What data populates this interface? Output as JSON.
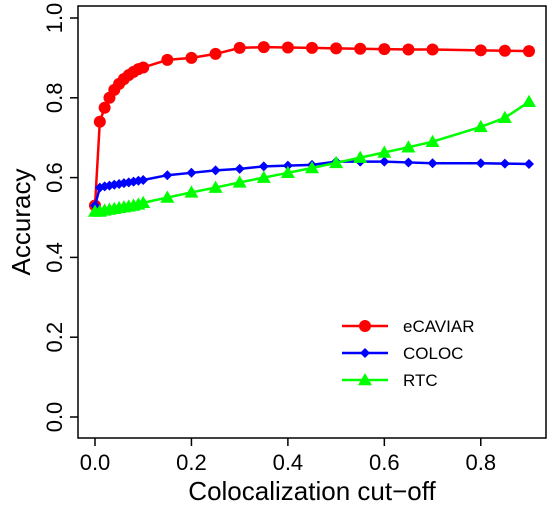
{
  "chart_data": {
    "type": "line",
    "xlabel": "Colocalization cut−off",
    "ylabel": "Accuracy",
    "xlim": [
      0,
      0.9
    ],
    "ylim": [
      0,
      1
    ],
    "x_ticks": [
      "0.0",
      "0.2",
      "0.4",
      "0.6",
      "0.8"
    ],
    "x_tick_values": [
      0,
      0.2,
      0.4,
      0.6,
      0.8
    ],
    "y_ticks": [
      "0.0",
      "0.2",
      "0.4",
      "0.6",
      "0.8",
      "1.0"
    ],
    "y_tick_values": [
      0,
      0.2,
      0.4,
      0.6,
      0.8,
      1.0
    ],
    "grid": false,
    "legend_position": "bottom-right",
    "series": [
      {
        "name": "eCAVIAR",
        "color": "#ff0000",
        "marker": "circle",
        "x": [
          0,
          0.01,
          0.02,
          0.03,
          0.04,
          0.05,
          0.06,
          0.07,
          0.08,
          0.09,
          0.1,
          0.15,
          0.2,
          0.25,
          0.3,
          0.35,
          0.4,
          0.45,
          0.5,
          0.55,
          0.6,
          0.65,
          0.7,
          0.8,
          0.85,
          0.9
        ],
        "y": [
          0.53,
          0.74,
          0.775,
          0.8,
          0.82,
          0.835,
          0.847,
          0.857,
          0.865,
          0.872,
          0.876,
          0.895,
          0.9,
          0.91,
          0.925,
          0.927,
          0.926,
          0.925,
          0.924,
          0.923,
          0.922,
          0.921,
          0.921,
          0.919,
          0.918,
          0.917
        ]
      },
      {
        "name": "COLOC",
        "color": "#0000ff",
        "marker": "diamond",
        "x": [
          0,
          0.01,
          0.02,
          0.03,
          0.04,
          0.05,
          0.06,
          0.07,
          0.08,
          0.09,
          0.1,
          0.15,
          0.2,
          0.25,
          0.3,
          0.35,
          0.4,
          0.45,
          0.5,
          0.55,
          0.6,
          0.65,
          0.7,
          0.8,
          0.85,
          0.9
        ],
        "y": [
          0.53,
          0.575,
          0.578,
          0.58,
          0.582,
          0.584,
          0.586,
          0.588,
          0.59,
          0.592,
          0.594,
          0.606,
          0.612,
          0.618,
          0.622,
          0.628,
          0.63,
          0.632,
          0.64,
          0.64,
          0.64,
          0.638,
          0.636,
          0.636,
          0.635,
          0.634
        ]
      },
      {
        "name": "RTC",
        "color": "#00ff00",
        "marker": "triangle",
        "x": [
          0,
          0.01,
          0.02,
          0.03,
          0.04,
          0.05,
          0.06,
          0.07,
          0.08,
          0.09,
          0.1,
          0.15,
          0.2,
          0.25,
          0.3,
          0.35,
          0.4,
          0.45,
          0.5,
          0.55,
          0.6,
          0.65,
          0.7,
          0.8,
          0.85,
          0.9
        ],
        "y": [
          0.515,
          0.515,
          0.518,
          0.52,
          0.522,
          0.524,
          0.526,
          0.528,
          0.53,
          0.533,
          0.537,
          0.55,
          0.563,
          0.575,
          0.588,
          0.6,
          0.612,
          0.624,
          0.637,
          0.65,
          0.663,
          0.676,
          0.69,
          0.727,
          0.75,
          0.79
        ]
      }
    ]
  }
}
